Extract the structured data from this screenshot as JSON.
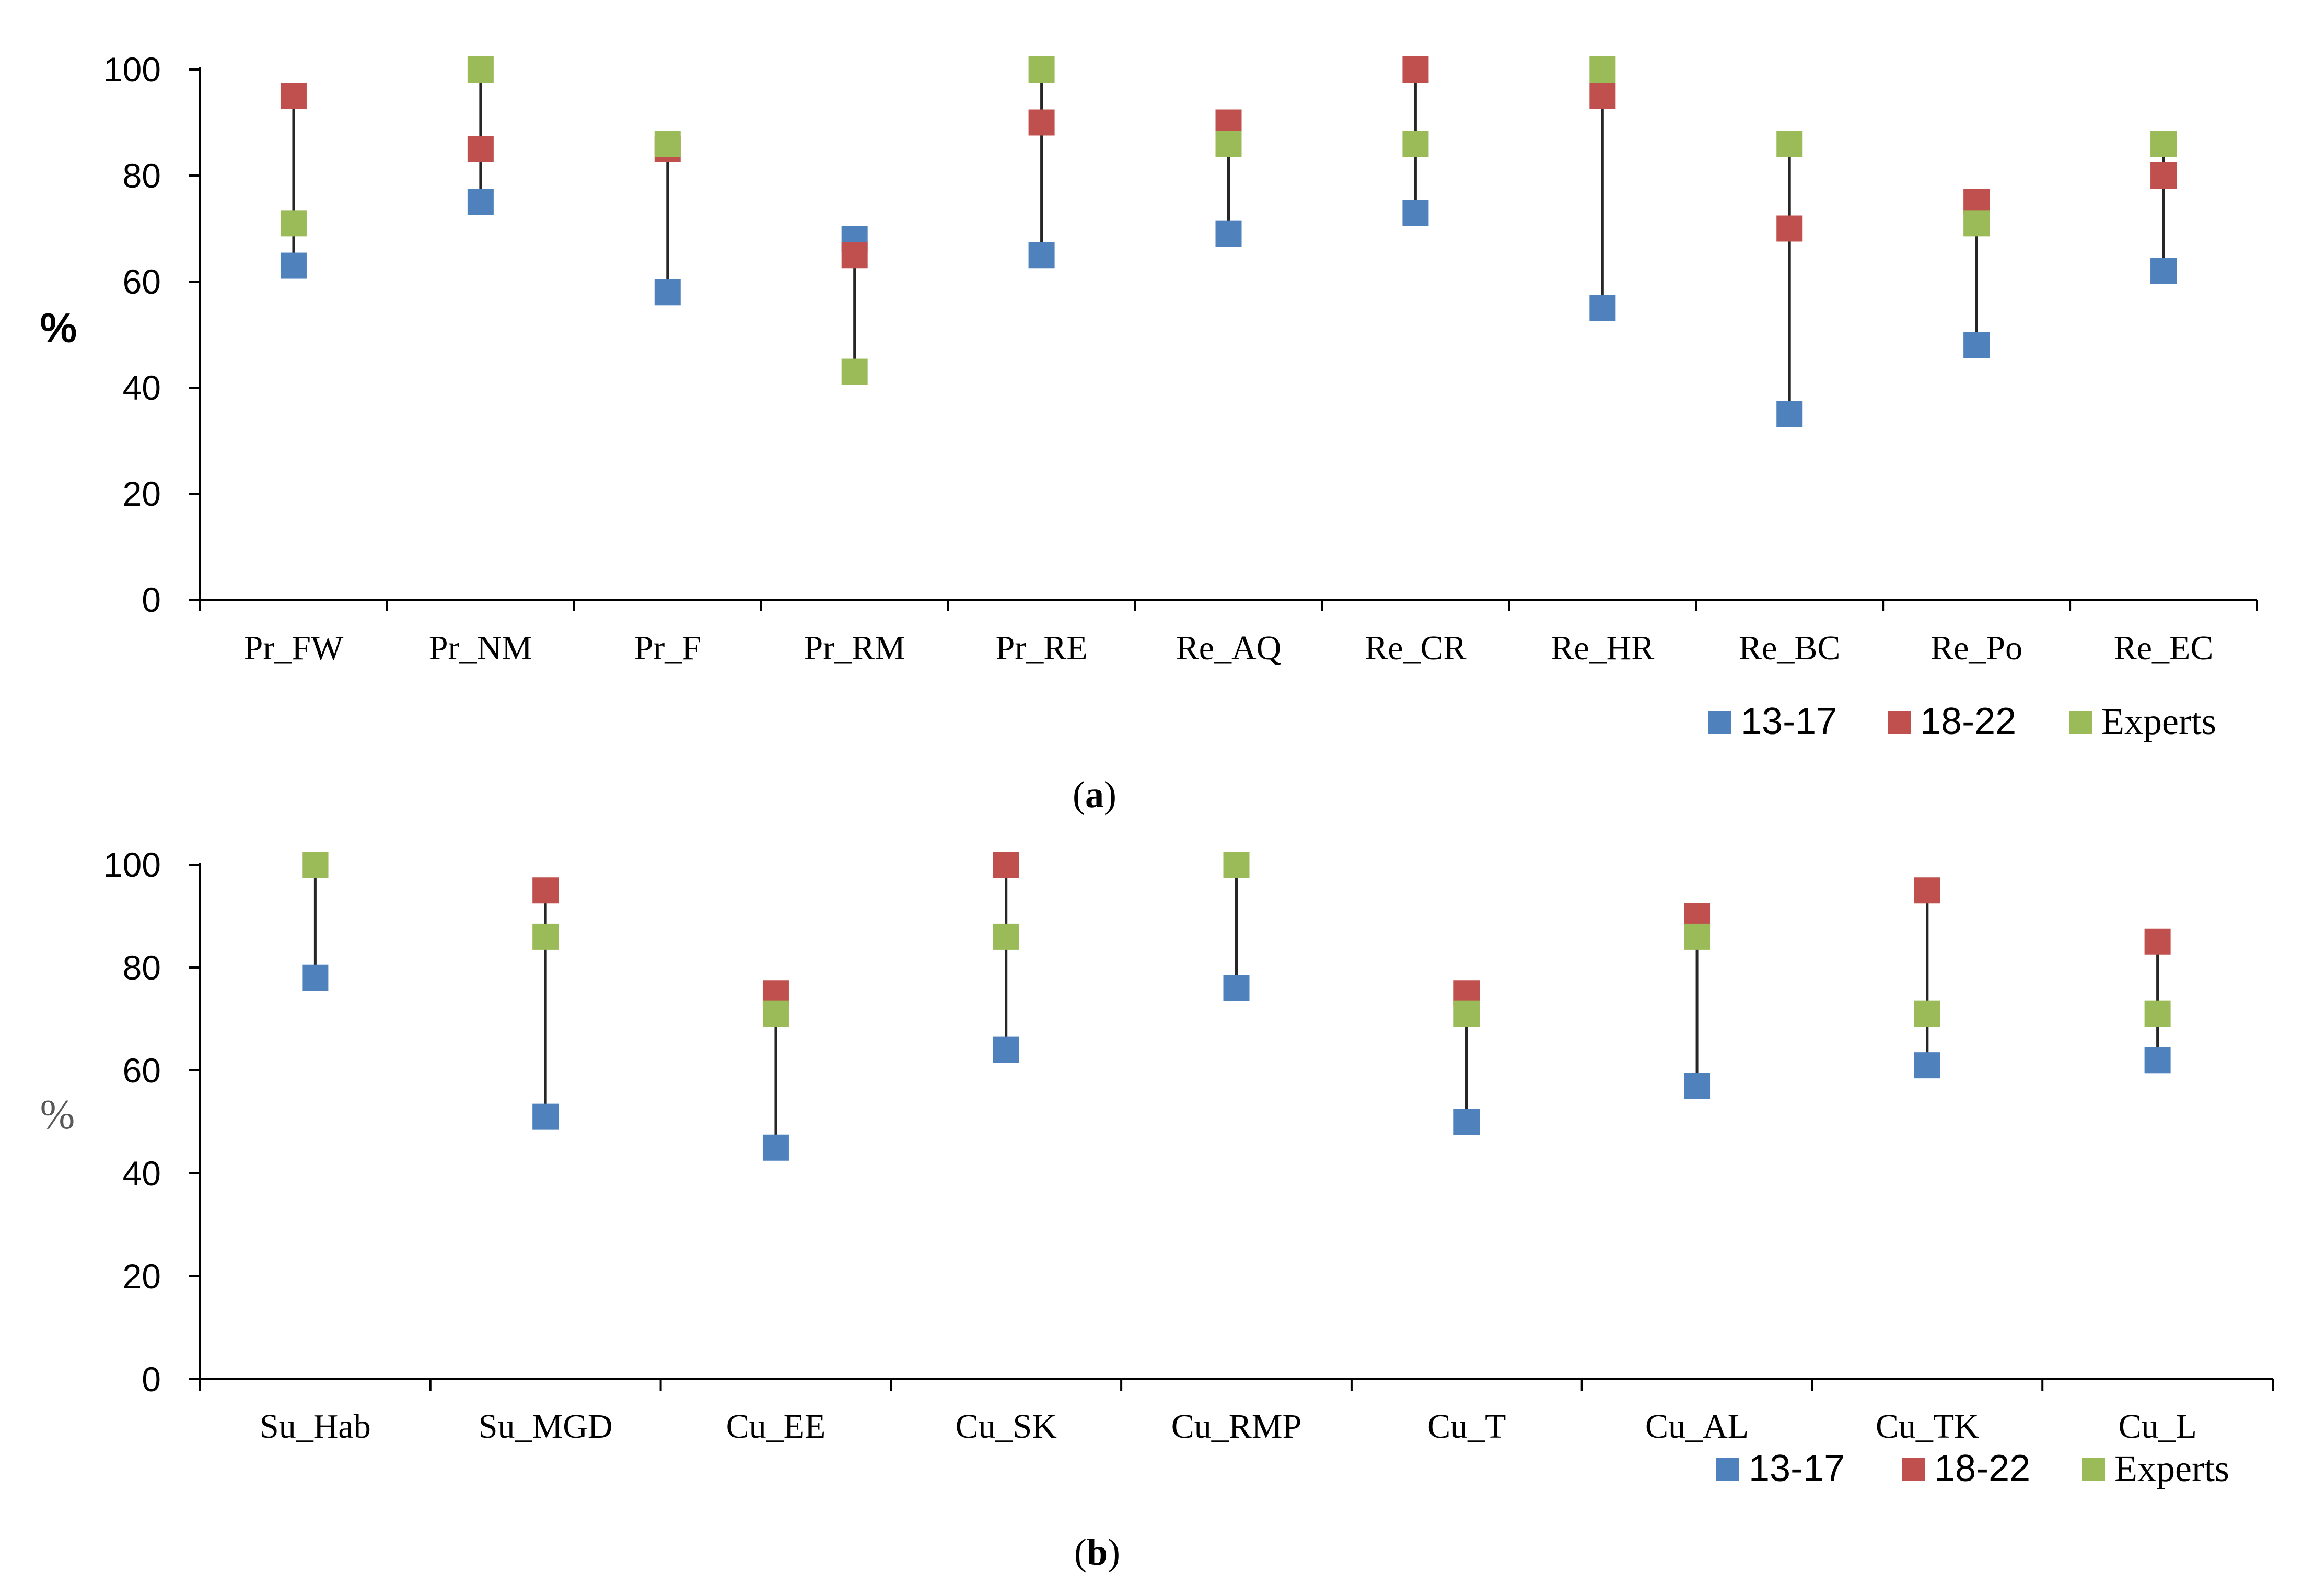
{
  "chart_data": [
    {
      "panel": "a",
      "type": "scatter",
      "ylabel": "%",
      "ylim": [
        0,
        100
      ],
      "yticks": [
        0,
        20,
        40,
        60,
        80,
        100
      ],
      "categories": [
        "Pr_FW",
        "Pr_NM",
        "Pr_F",
        "Pr_RM",
        "Pr_RE",
        "Re_AQ",
        "Re_CR",
        "Re_HR",
        "Re_BC",
        "Re_Po",
        "Re_EC"
      ],
      "series": [
        {
          "name": "13-17",
          "color": "#4f81bd",
          "values": [
            63,
            75,
            58,
            68,
            65,
            69,
            73,
            55,
            35,
            48,
            62
          ]
        },
        {
          "name": "18-22",
          "color": "#c0504d",
          "values": [
            95,
            85,
            85,
            65,
            90,
            90,
            100,
            95,
            70,
            75,
            80
          ]
        },
        {
          "name": "Experts",
          "color": "#9bbb59",
          "values": [
            71,
            100,
            86,
            43,
            100,
            86,
            86,
            100,
            86,
            71,
            86
          ]
        }
      ],
      "range_line": true,
      "legend_position": "bottom-right",
      "caption": {
        "open": "(",
        "letter": "a",
        "close": ")"
      }
    },
    {
      "panel": "b",
      "type": "scatter",
      "ylabel": "%",
      "ylim": [
        0,
        100
      ],
      "yticks": [
        0,
        20,
        40,
        60,
        80,
        100
      ],
      "categories": [
        "Su_Hab",
        "Su_MGD",
        "Cu_EE",
        "Cu_SK",
        "Cu_RMP",
        "Cu_T",
        "Cu_AL",
        "Cu_TK",
        "Cu_L"
      ],
      "series": [
        {
          "name": "13-17",
          "color": "#4f81bd",
          "values": [
            78,
            51,
            45,
            64,
            76,
            50,
            57,
            61,
            62
          ]
        },
        {
          "name": "18-22",
          "color": "#c0504d",
          "values": [
            100,
            95,
            75,
            100,
            100,
            75,
            90,
            95,
            85
          ]
        },
        {
          "name": "Experts",
          "color": "#9bbb59",
          "values": [
            100,
            86,
            71,
            86,
            100,
            71,
            86,
            71,
            71
          ]
        }
      ],
      "range_line": true,
      "legend_position": "bottom-right",
      "caption": {
        "open": "(",
        "letter": "b",
        "close": ")"
      }
    }
  ]
}
